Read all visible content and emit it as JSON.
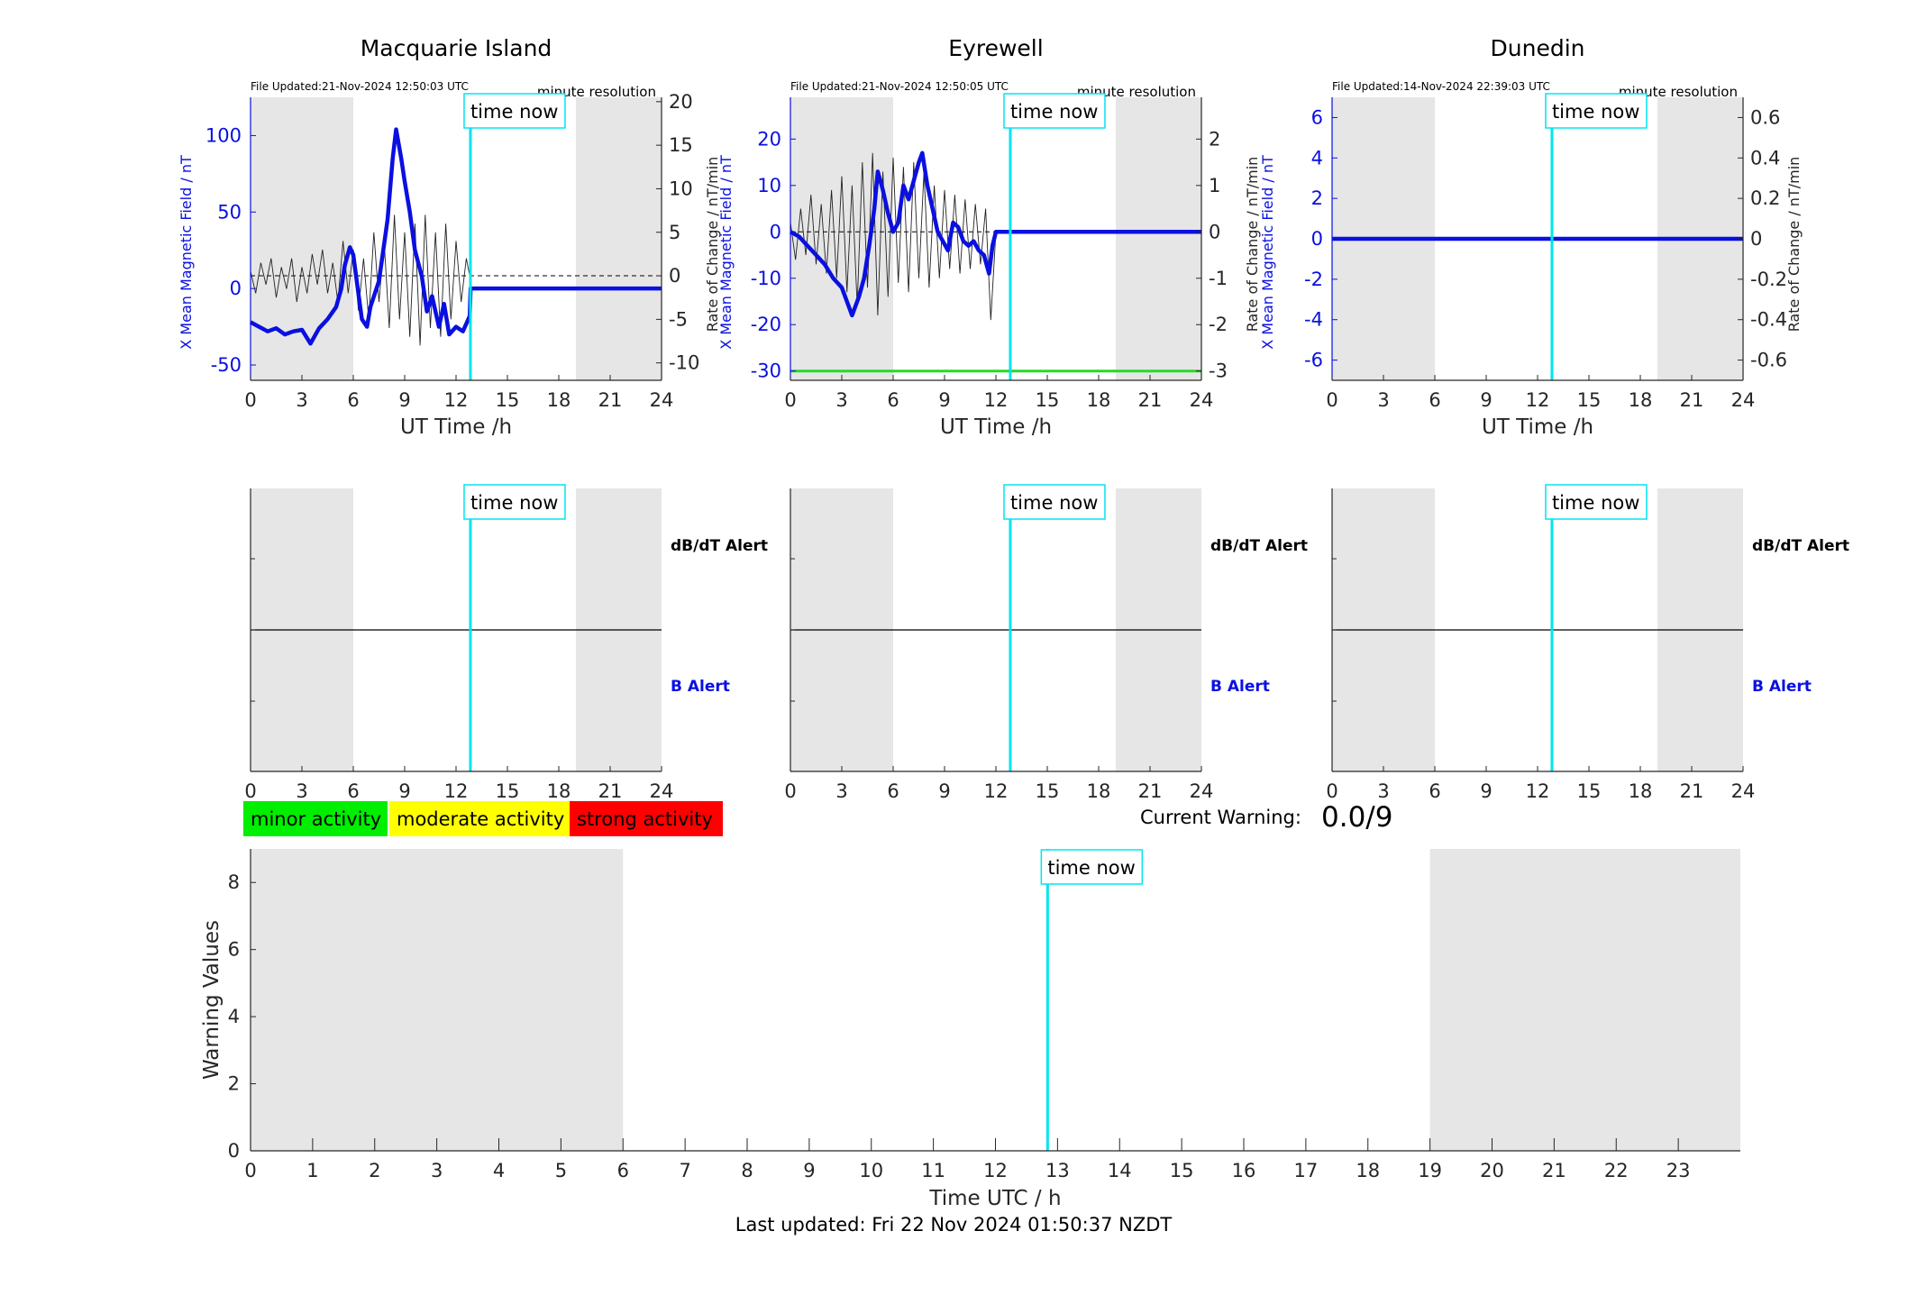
{
  "app": {
    "last_updated": "Last updated: Fri 22 Nov 2024 01:50:37 NZDT",
    "current_warning_label": "Current Warning:",
    "current_warning_value": "0.0/9"
  },
  "colors": {
    "shade": "#e6e6e6",
    "time_now": "#00e5ee",
    "x_series": "#0a10e0",
    "rate_series": "#222222",
    "minor": "#00ee00",
    "moderate": "#ffff00",
    "strong": "#ff0000",
    "threshold": "#22dd22"
  },
  "legend": {
    "minor": "minor activity",
    "moderate": "moderate activity",
    "strong": "strong activity"
  },
  "time_now_label": "time now",
  "time_now_hour": 12.84,
  "shade_ranges_hours": [
    [
      0,
      6
    ],
    [
      19,
      24
    ]
  ],
  "alert_panel": {
    "dbdt_label": "dB/dT Alert",
    "b_label": "B Alert",
    "xticks": [
      "0",
      "3",
      "6",
      "9",
      "12",
      "15",
      "18",
      "21",
      "24"
    ]
  },
  "chart_data": [
    {
      "type": "line",
      "title": "Macquarie Island",
      "file_updated": "File Updated:21-Nov-2024 12:50:03 UTC",
      "resolution": "minute resolution",
      "xlabel": "UT Time /h",
      "ylabel_left": "X Mean Magnetic Field / nT",
      "ylabel_right": "Rate of Change / nT/min",
      "xlim": [
        0,
        24
      ],
      "ylim_left": [
        -60,
        125
      ],
      "ylim_right": [
        -12,
        20.5
      ],
      "xticks": [
        0,
        3,
        6,
        9,
        12,
        15,
        18,
        21,
        24
      ],
      "yticks_left": [
        -50,
        0,
        50,
        100
      ],
      "yticks_right": [
        -10,
        -5,
        0,
        5,
        10,
        15,
        20
      ],
      "x_series": [
        [
          0,
          -22
        ],
        [
          0.5,
          -25
        ],
        [
          1,
          -28
        ],
        [
          1.5,
          -26
        ],
        [
          2,
          -30
        ],
        [
          2.5,
          -28
        ],
        [
          3,
          -27
        ],
        [
          3.5,
          -36
        ],
        [
          4,
          -26
        ],
        [
          4.5,
          -20
        ],
        [
          5,
          -12
        ],
        [
          5.3,
          0
        ],
        [
          5.5,
          15
        ],
        [
          5.8,
          27
        ],
        [
          6,
          22
        ],
        [
          6.2,
          5
        ],
        [
          6.5,
          -20
        ],
        [
          6.8,
          -25
        ],
        [
          7,
          -12
        ],
        [
          7.5,
          5
        ],
        [
          8,
          45
        ],
        [
          8.3,
          85
        ],
        [
          8.5,
          104
        ],
        [
          8.8,
          85
        ],
        [
          9,
          70
        ],
        [
          9.3,
          50
        ],
        [
          9.6,
          25
        ],
        [
          10,
          8
        ],
        [
          10.3,
          -15
        ],
        [
          10.6,
          -5
        ],
        [
          11,
          -25
        ],
        [
          11.3,
          -10
        ],
        [
          11.6,
          -30
        ],
        [
          12,
          -25
        ],
        [
          12.4,
          -28
        ],
        [
          12.8,
          -18
        ],
        [
          12.85,
          0
        ],
        [
          24,
          0
        ]
      ],
      "rate_series": [
        [
          0,
          0.5
        ],
        [
          0.3,
          -2
        ],
        [
          0.6,
          1.5
        ],
        [
          0.9,
          -1
        ],
        [
          1.2,
          2
        ],
        [
          1.5,
          -2.5
        ],
        [
          1.8,
          1
        ],
        [
          2.1,
          -1.5
        ],
        [
          2.4,
          2
        ],
        [
          2.7,
          -3
        ],
        [
          3,
          1
        ],
        [
          3.3,
          -2
        ],
        [
          3.6,
          2.5
        ],
        [
          3.9,
          -1
        ],
        [
          4.2,
          3
        ],
        [
          4.5,
          -2
        ],
        [
          4.8,
          1.5
        ],
        [
          5.1,
          -3
        ],
        [
          5.4,
          4
        ],
        [
          5.7,
          -2
        ],
        [
          6,
          3
        ],
        [
          6.3,
          -4
        ],
        [
          6.6,
          2
        ],
        [
          6.9,
          -5
        ],
        [
          7.2,
          5
        ],
        [
          7.5,
          -3
        ],
        [
          7.8,
          4
        ],
        [
          8.1,
          -6
        ],
        [
          8.4,
          7
        ],
        [
          8.7,
          -5
        ],
        [
          9,
          5
        ],
        [
          9.3,
          -7
        ],
        [
          9.6,
          6
        ],
        [
          9.9,
          -8
        ],
        [
          10.2,
          7
        ],
        [
          10.5,
          -6
        ],
        [
          10.8,
          5
        ],
        [
          11.1,
          -7
        ],
        [
          11.4,
          6
        ],
        [
          11.7,
          -5
        ],
        [
          12,
          4
        ],
        [
          12.3,
          -3
        ],
        [
          12.6,
          2
        ],
        [
          12.8,
          0
        ]
      ]
    },
    {
      "type": "line",
      "title": "Eyrewell",
      "file_updated": "File Updated:21-Nov-2024 12:50:05 UTC",
      "resolution": "minute resolution",
      "xlabel": "UT Time /h",
      "ylabel_left": "X Mean Magnetic Field / nT",
      "ylabel_right": "Rate of Change / nT/min",
      "xlim": [
        0,
        24
      ],
      "ylim_left": [
        -32,
        29
      ],
      "ylim_right": [
        -3.2,
        2.9
      ],
      "xticks": [
        0,
        3,
        6,
        9,
        12,
        15,
        18,
        21,
        24
      ],
      "yticks_left": [
        -30,
        -20,
        -10,
        0,
        10,
        20
      ],
      "yticks_right": [
        -3,
        -2,
        -1,
        0,
        1,
        2
      ],
      "x_series": [
        [
          0,
          0
        ],
        [
          0.5,
          -1
        ],
        [
          1,
          -3
        ],
        [
          1.5,
          -5
        ],
        [
          2,
          -7
        ],
        [
          2.5,
          -10
        ],
        [
          3,
          -12
        ],
        [
          3.3,
          -15
        ],
        [
          3.6,
          -18
        ],
        [
          4,
          -14
        ],
        [
          4.3,
          -10
        ],
        [
          4.6,
          -3
        ],
        [
          4.9,
          5
        ],
        [
          5.1,
          13
        ],
        [
          5.4,
          9
        ],
        [
          5.7,
          4
        ],
        [
          6,
          0
        ],
        [
          6.3,
          2
        ],
        [
          6.6,
          10
        ],
        [
          6.9,
          7
        ],
        [
          7.2,
          11
        ],
        [
          7.5,
          15
        ],
        [
          7.7,
          17
        ],
        [
          8,
          10
        ],
        [
          8.3,
          5
        ],
        [
          8.6,
          0
        ],
        [
          8.9,
          -2
        ],
        [
          9.2,
          -4
        ],
        [
          9.5,
          2
        ],
        [
          9.8,
          1
        ],
        [
          10.1,
          -2
        ],
        [
          10.4,
          -3
        ],
        [
          10.7,
          -2
        ],
        [
          11,
          -4
        ],
        [
          11.3,
          -5
        ],
        [
          11.6,
          -9
        ],
        [
          11.8,
          -3
        ],
        [
          12,
          0
        ],
        [
          24,
          0
        ]
      ],
      "rate_series": [
        [
          0,
          0.2
        ],
        [
          0.3,
          -0.6
        ],
        [
          0.6,
          0.5
        ],
        [
          0.9,
          -0.5
        ],
        [
          1.2,
          0.8
        ],
        [
          1.5,
          -0.7
        ],
        [
          1.8,
          0.6
        ],
        [
          2.1,
          -0.9
        ],
        [
          2.4,
          0.9
        ],
        [
          2.7,
          -1
        ],
        [
          3,
          1.2
        ],
        [
          3.3,
          -1.3
        ],
        [
          3.6,
          1
        ],
        [
          3.9,
          -1.6
        ],
        [
          4.2,
          1.5
        ],
        [
          4.5,
          -1.2
        ],
        [
          4.8,
          1.7
        ],
        [
          5.1,
          -1.8
        ],
        [
          5.4,
          1.3
        ],
        [
          5.7,
          -1.4
        ],
        [
          6,
          1.6
        ],
        [
          6.3,
          -1.1
        ],
        [
          6.6,
          1.4
        ],
        [
          6.9,
          -1.3
        ],
        [
          7.2,
          1.5
        ],
        [
          7.5,
          -1
        ],
        [
          7.8,
          1.3
        ],
        [
          8.1,
          -1.2
        ],
        [
          8.4,
          1
        ],
        [
          8.7,
          -1
        ],
        [
          9,
          0.9
        ],
        [
          9.3,
          -0.8
        ],
        [
          9.6,
          0.8
        ],
        [
          9.9,
          -0.9
        ],
        [
          10.2,
          0.7
        ],
        [
          10.5,
          -0.8
        ],
        [
          10.8,
          0.6
        ],
        [
          11.1,
          -0.7
        ],
        [
          11.4,
          0.5
        ],
        [
          11.7,
          -1.9
        ],
        [
          12,
          0
        ]
      ],
      "threshold_left": -30
    },
    {
      "type": "line",
      "title": "Dunedin",
      "file_updated": "File Updated:14-Nov-2024 22:39:03 UTC",
      "resolution": "minute resolution",
      "xlabel": "UT Time /h",
      "ylabel_left": "X Mean Magnetic Field / nT",
      "ylabel_right": "Rate of Change / nT/min",
      "xlim": [
        0,
        24
      ],
      "ylim_left": [
        -7,
        7
      ],
      "ylim_right": [
        -0.7,
        0.7
      ],
      "xticks": [
        0,
        3,
        6,
        9,
        12,
        15,
        18,
        21,
        24
      ],
      "yticks_left": [
        -6,
        -4,
        -2,
        0,
        2,
        4,
        6
      ],
      "yticks_right": [
        -0.6,
        -0.4,
        -0.2,
        0,
        0.2,
        0.4,
        0.6
      ],
      "x_series": [
        [
          0,
          0
        ],
        [
          24,
          0
        ]
      ],
      "rate_series": []
    },
    {
      "type": "line",
      "title": "",
      "xlabel": "Time UTC / h",
      "ylabel": "Warning Values",
      "xlim": [
        0,
        24
      ],
      "ylim": [
        0,
        9
      ],
      "xticks": [
        0,
        1,
        2,
        3,
        4,
        5,
        6,
        7,
        8,
        9,
        10,
        11,
        12,
        13,
        14,
        15,
        16,
        17,
        18,
        19,
        20,
        21,
        22,
        23
      ],
      "yticks": [
        0,
        2,
        4,
        6,
        8
      ],
      "values": []
    }
  ]
}
